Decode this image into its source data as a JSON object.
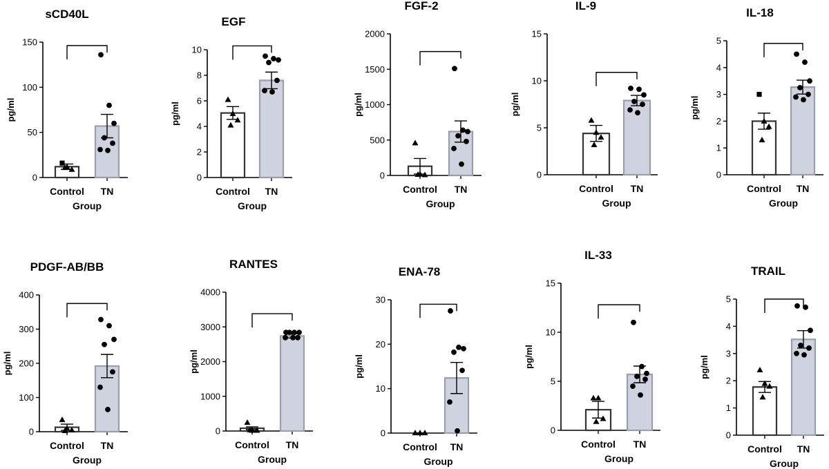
{
  "colors": {
    "control_fill": "#ffffff",
    "tn_fill": "#cfd3df",
    "stroke": "#333333"
  },
  "chart_data": [
    {
      "type": "bar",
      "title": "sCD40L",
      "categories": [
        "Control",
        "TN"
      ],
      "xlabel": "Group",
      "ylabel": "pg/ml",
      "ylim": [
        0,
        150
      ],
      "yticks": [
        "0",
        "50",
        "100",
        "150"
      ],
      "means": [
        12,
        57
      ],
      "sem": [
        3,
        13
      ],
      "points": [
        [
          16,
          12,
          9,
          11
        ],
        [
          136,
          80,
          60,
          44,
          38,
          31,
          30
        ]
      ]
    },
    {
      "type": "bar",
      "title": "EGF",
      "categories": [
        "Control",
        "TN"
      ],
      "xlabel": "Group",
      "ylabel": "pg/ml",
      "ylim": [
        0,
        10
      ],
      "yticks": [
        "0",
        "2",
        "4",
        "6",
        "8",
        "10"
      ],
      "means": [
        5.05,
        7.6
      ],
      "sem": [
        0.5,
        0.65
      ],
      "points": [
        [
          6.1,
          5.0,
          4.5,
          4.1
        ],
        [
          9.5,
          9.3,
          9.2,
          9.0,
          7.6,
          6.8,
          6.7
        ]
      ]
    },
    {
      "type": "bar",
      "title": "FGF-2",
      "categories": [
        "Control",
        "TN"
      ],
      "xlabel": "Group",
      "ylabel": "pg/ml",
      "ylim": [
        0,
        2000
      ],
      "yticks": [
        "0",
        "500",
        "1000",
        "1500",
        "2000"
      ],
      "means": [
        130,
        620
      ],
      "sem": [
        110,
        150
      ],
      "points": [
        [
          460,
          20,
          10,
          15
        ],
        [
          1510,
          640,
          620,
          560,
          480,
          380,
          160
        ]
      ]
    },
    {
      "type": "bar",
      "title": "IL-9",
      "categories": [
        "Control",
        "TN"
      ],
      "xlabel": "Group",
      "ylabel": "pg/ml",
      "ylim": [
        0,
        15
      ],
      "yticks": [
        "0",
        "5",
        "10",
        "15"
      ],
      "means": [
        4.4,
        7.9
      ],
      "sem": [
        0.85,
        0.55
      ],
      "points": [
        [
          5.8,
          4.5,
          4.0,
          3.2
        ],
        [
          9.2,
          9.1,
          8.5,
          7.8,
          7.5,
          6.9,
          6.6
        ]
      ]
    },
    {
      "type": "bar",
      "title": "IL-18",
      "categories": [
        "Control",
        "TN"
      ],
      "xlabel": "Group",
      "ylabel": "pg/ml",
      "ylim": [
        0,
        5
      ],
      "yticks": [
        "0",
        "1",
        "2",
        "3",
        "4",
        "5"
      ],
      "means": [
        2.0,
        3.27
      ],
      "sem": [
        0.3,
        0.26
      ],
      "points": [
        [
          3.0,
          2.0,
          1.8,
          1.3
        ],
        [
          4.5,
          4.2,
          3.5,
          3.25,
          3.0,
          2.9,
          2.8
        ]
      ]
    },
    {
      "type": "bar",
      "title": "PDGF-AB/BB",
      "categories": [
        "Control",
        "TN"
      ],
      "xlabel": "Group",
      "ylabel": "pg/ml",
      "ylim": [
        0,
        400
      ],
      "yticks": [
        "0",
        "100",
        "200",
        "300",
        "400"
      ],
      "means": [
        13,
        192
      ],
      "sem": [
        9,
        34
      ],
      "points": [
        [
          35,
          10,
          5,
          3
        ],
        [
          328,
          310,
          270,
          255,
          175,
          130,
          65
        ]
      ]
    },
    {
      "type": "bar",
      "title": "RANTES",
      "categories": [
        "Control",
        "TN"
      ],
      "xlabel": "Group",
      "ylabel": "pg/ml",
      "ylim": [
        0,
        4000
      ],
      "yticks": [
        "0",
        "1000",
        "2000",
        "3000",
        "4000"
      ],
      "means": [
        80,
        2740
      ],
      "sem": [
        40,
        60
      ],
      "points": [
        [
          250,
          20,
          20,
          30
        ],
        [
          2840,
          2840,
          2840,
          2840,
          2690,
          2690,
          2690
        ]
      ]
    },
    {
      "type": "bar",
      "title": "ENA-78",
      "categories": [
        "Control",
        "TN"
      ],
      "xlabel": "Group",
      "ylabel": "pg/ml",
      "ylim": [
        0,
        30
      ],
      "yticks": [
        "0",
        "10",
        "20",
        "30"
      ],
      "means": [
        0,
        12.4
      ],
      "sem": [
        0.02,
        3.5
      ],
      "points": [
        [
          0.05,
          0.05,
          0.05
        ],
        [
          27.5,
          19.3,
          19.0,
          18.2,
          14.1,
          7.0,
          0.5
        ]
      ]
    },
    {
      "type": "bar",
      "title": "IL-33",
      "categories": [
        "Control",
        "TN"
      ],
      "xlabel": "Group",
      "ylabel": "pg/ml",
      "ylim": [
        0,
        15
      ],
      "yticks": [
        "0",
        "5",
        "10",
        "15"
      ],
      "means": [
        2.1,
        5.7
      ],
      "sem": [
        0.85,
        0.85
      ],
      "points": [
        [
          3.3,
          3.3,
          1.2,
          0.9
        ],
        [
          11.0,
          6.5,
          5.8,
          5.5,
          5.2,
          4.5,
          3.6
        ]
      ]
    },
    {
      "type": "bar",
      "title": "TRAIL",
      "categories": [
        "Control",
        "TN"
      ],
      "xlabel": "Group",
      "ylabel": "pg/ml",
      "ylim": [
        0,
        5
      ],
      "yticks": [
        "0",
        "1",
        "2",
        "3",
        "4",
        "5"
      ],
      "means": [
        1.77,
        3.52
      ],
      "sem": [
        0.2,
        0.32
      ],
      "points": [
        [
          2.4,
          1.9,
          1.8,
          1.4
        ],
        [
          4.75,
          4.7,
          3.85,
          3.3,
          3.2,
          3.0,
          2.95
        ]
      ]
    }
  ]
}
